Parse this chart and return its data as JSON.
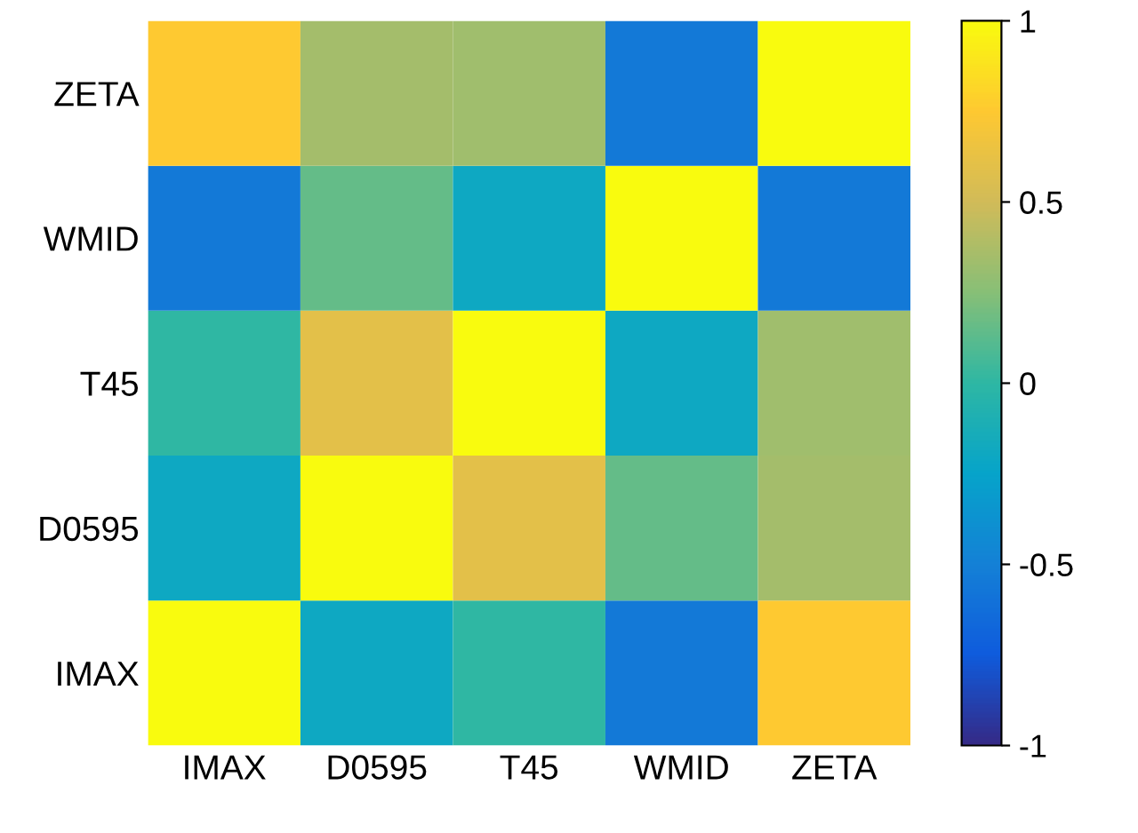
{
  "chart_data": {
    "type": "heatmap",
    "categories": [
      "IMAX",
      "D0595",
      "T45",
      "WMID",
      "ZETA"
    ],
    "y_categories": [
      "ZETA",
      "WMID",
      "T45",
      "D0595",
      "IMAX"
    ],
    "cells": [
      [
        0.75,
        0.35,
        0.33,
        -0.55,
        1
      ],
      [
        -0.55,
        0.15,
        -0.2,
        1,
        -0.55
      ],
      [
        0.0,
        0.6,
        1,
        -0.2,
        0.33
      ],
      [
        -0.2,
        1,
        0.6,
        0.15,
        0.35
      ],
      [
        1,
        -0.2,
        0.0,
        -0.55,
        0.75
      ]
    ],
    "clim": [
      -1,
      1
    ],
    "cticks": [
      -1,
      -0.5,
      0,
      0.5,
      1
    ]
  }
}
